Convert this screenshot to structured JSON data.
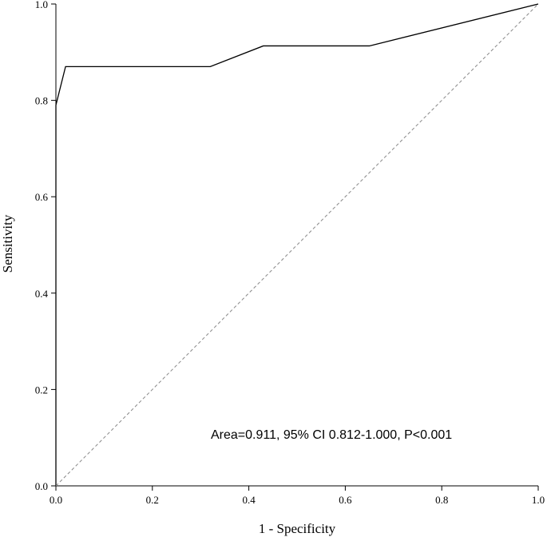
{
  "chart_data": {
    "type": "line",
    "title": "",
    "xlabel": "1 - Specificity",
    "ylabel": "Sensitivity",
    "xlim": [
      0,
      1
    ],
    "ylim": [
      0,
      1
    ],
    "xticks": [
      "0.0",
      "0.2",
      "0.4",
      "0.6",
      "0.8",
      "1.0"
    ],
    "yticks": [
      "0.0",
      "0.2",
      "0.4",
      "0.6",
      "0.8",
      "1.0"
    ],
    "grid": false,
    "legend": "none",
    "series": [
      {
        "x": [
          0.0,
          0.0,
          0.02,
          0.32,
          0.43,
          0.65,
          1.0
        ],
        "y": [
          0.0,
          0.79,
          0.87,
          0.87,
          0.913,
          0.913,
          1.0
        ],
        "color": "#000000",
        "style": "solid"
      },
      {
        "x": [
          0.0,
          1.0
        ],
        "y": [
          0.0,
          1.0
        ],
        "color": "#888888",
        "style": "dashed"
      }
    ],
    "annotation": "Area=0.911, 95% CI 0.812-1.000, P<0.001"
  }
}
